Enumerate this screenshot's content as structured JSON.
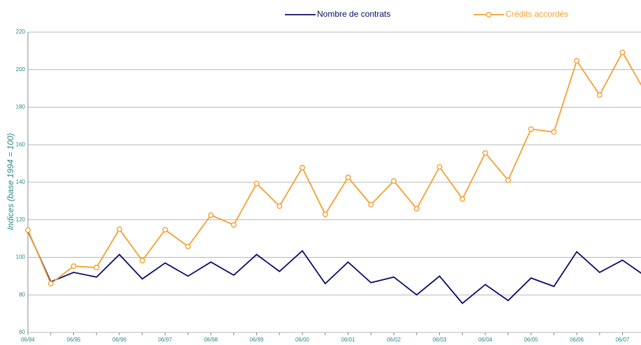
{
  "chart_data": {
    "type": "line",
    "y_label": "Indices (base 1994 = 100)",
    "categories": [
      "06/94",
      null,
      "06/95",
      null,
      "06/96",
      null,
      "06/97",
      null,
      "06/98",
      null,
      "06/99",
      null,
      "06/00",
      null,
      "06/01",
      null,
      "06/02",
      null,
      "06/03",
      null,
      "06/04",
      null,
      "06/05",
      null,
      "06/06",
      null,
      "06/07",
      null
    ],
    "series": [
      {
        "name": "Nombre de contrats",
        "color": "#0a0a6e",
        "marker": false,
        "values": [
          114,
          87,
          92,
          89.5,
          101.5,
          88.5,
          97,
          90,
          97.5,
          90.5,
          101.5,
          92.5,
          103.5,
          86,
          97.5,
          86.5,
          89.5,
          80,
          90,
          75.5,
          85.5,
          77,
          89,
          84.5,
          103,
          92,
          98.5,
          90
        ]
      },
      {
        "name": "Crédits accordés",
        "color": "#f5a030",
        "marker": true,
        "values": [
          114.5,
          86,
          95.3,
          94.6,
          115,
          98.3,
          114.7,
          105.8,
          122.5,
          117.3,
          139.3,
          127.3,
          147.8,
          122.9,
          142.6,
          128.1,
          140.7,
          125.9,
          148.2,
          131.1,
          155.6,
          141.1,
          168.3,
          166.8,
          204.7,
          186.5,
          209.2,
          188
        ]
      }
    ],
    "ylim": [
      60,
      220
    ],
    "yticks": [
      60,
      80,
      100,
      120,
      140,
      160,
      180,
      200,
      220
    ],
    "grid": true
  }
}
